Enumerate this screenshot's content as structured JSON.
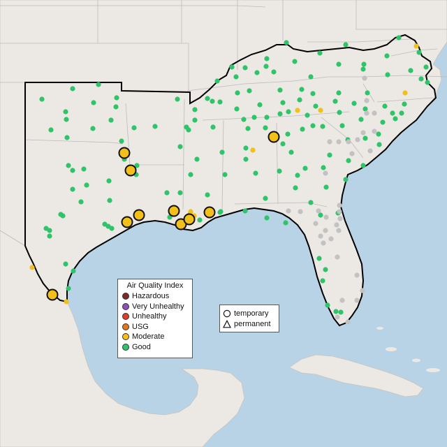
{
  "legend": {
    "title": "Air Quality Index",
    "items": [
      {
        "label": "Hazardous",
        "color": "#7e2a2a"
      },
      {
        "label": "Very Unhealthy",
        "color": "#8f4fb5"
      },
      {
        "label": "Unhealthy",
        "color": "#e03c2c"
      },
      {
        "label": "USG",
        "color": "#e07820"
      },
      {
        "label": "Moderate",
        "color": "#f2c018"
      },
      {
        "label": "Good",
        "color": "#2fc46a"
      }
    ]
  },
  "shape_legend": {
    "items": [
      {
        "label": "temporary",
        "shape": "circle-icon"
      },
      {
        "label": "permanent",
        "shape": "triangle-icon"
      }
    ]
  },
  "colors": {
    "water": "#b8d3e6",
    "land": "#ece9e4",
    "state_border": "#b8b8b8",
    "region_border": "#000000",
    "good": "#2fc46a",
    "moderate": "#f2c018",
    "no_data": "#c2c2c2"
  }
}
